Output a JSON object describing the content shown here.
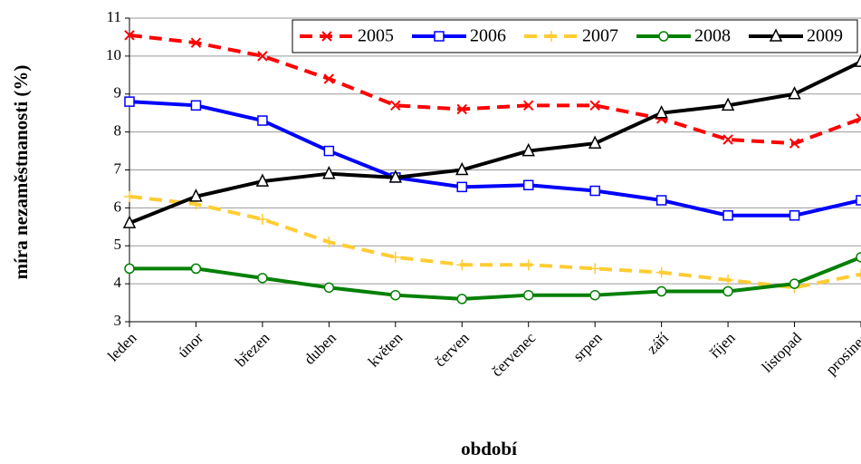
{
  "chart_data": {
    "type": "line",
    "xlabel": "období",
    "ylabel": "míra nezaměstnanosti (%)",
    "categories": [
      "leden",
      "únor",
      "březen",
      "duben",
      "květen",
      "červen",
      "červenec",
      "srpen",
      "září",
      "říjen",
      "listopad",
      "prosinec"
    ],
    "series": [
      {
        "name": "2005",
        "color": "#ff0000",
        "marker": "x",
        "linestyle": "dashed",
        "values": [
          10.55,
          10.35,
          10.0,
          9.4,
          8.7,
          8.6,
          8.7,
          8.7,
          8.35,
          7.8,
          7.7,
          8.35
        ]
      },
      {
        "name": "2006",
        "color": "#0000ff",
        "marker": "square",
        "linestyle": "solid",
        "values": [
          8.8,
          8.7,
          8.3,
          7.5,
          6.8,
          6.55,
          6.6,
          6.45,
          6.2,
          5.8,
          5.8,
          6.2
        ]
      },
      {
        "name": "2007",
        "color": "#ffcc33",
        "marker": "plus",
        "linestyle": "dashed",
        "values": [
          6.3,
          6.1,
          5.7,
          5.1,
          4.7,
          4.5,
          4.5,
          4.4,
          4.3,
          4.1,
          3.9,
          4.25
        ]
      },
      {
        "name": "2008",
        "color": "#008000",
        "marker": "circle",
        "linestyle": "solid",
        "values": [
          4.4,
          4.4,
          4.15,
          3.9,
          3.7,
          3.6,
          3.7,
          3.7,
          3.8,
          3.8,
          4.0,
          4.7
        ]
      },
      {
        "name": "2009",
        "color": "#000000",
        "marker": "triangle",
        "linestyle": "solid",
        "values": [
          5.6,
          6.3,
          6.7,
          6.9,
          6.8,
          7.0,
          7.5,
          7.7,
          8.5,
          8.7,
          9.0,
          9.85
        ]
      }
    ],
    "ylim": [
      3,
      11
    ],
    "yticks": [
      3,
      4,
      5,
      6,
      7,
      8,
      9,
      10,
      11
    ],
    "grid": true,
    "legend": "top-right"
  }
}
